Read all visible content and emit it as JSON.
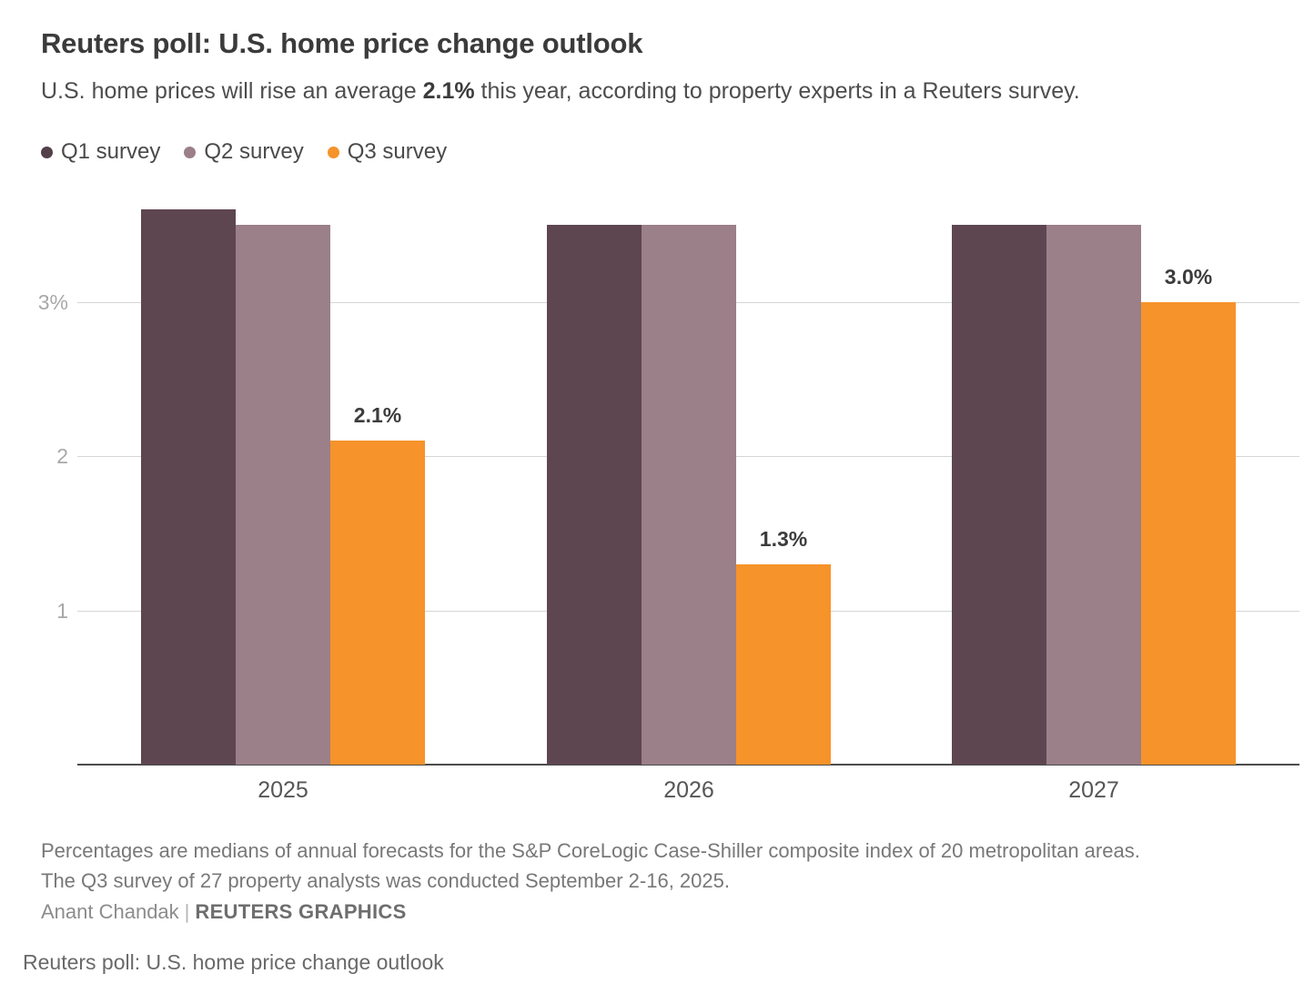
{
  "title": "Reuters poll: U.S. home price change outlook",
  "subtitle": {
    "prefix": "U.S. home prices will rise an average ",
    "highlight": "2.1%",
    "suffix": " this year, according to property experts in a Reuters survey."
  },
  "legend": {
    "items": [
      {
        "label": "Q1 survey",
        "color": "#53404a"
      },
      {
        "label": "Q2 survey",
        "color": "#9b7f89"
      },
      {
        "label": "Q3 survey",
        "color": "#f6932a"
      }
    ]
  },
  "chart_data": {
    "type": "bar",
    "categories": [
      "2025",
      "2026",
      "2027"
    ],
    "series": [
      {
        "name": "Q1 survey",
        "color": "#5e4650",
        "values": [
          3.6,
          3.5,
          3.5
        ],
        "labels": [
          null,
          null,
          null
        ]
      },
      {
        "name": "Q2 survey",
        "color": "#9b7f89",
        "values": [
          3.5,
          3.5,
          3.5
        ],
        "labels": [
          null,
          null,
          null
        ]
      },
      {
        "name": "Q3 survey",
        "color": "#f6932a",
        "values": [
          2.1,
          1.3,
          3.0
        ],
        "labels": [
          "2.1%",
          "1.3%",
          "3.0%"
        ]
      }
    ],
    "yticks": [
      {
        "value": 1,
        "label": "1"
      },
      {
        "value": 2,
        "label": "2"
      },
      {
        "value": 3,
        "label": "3%"
      }
    ],
    "ylim": [
      0,
      3.65
    ],
    "xlabel": "",
    "ylabel": "",
    "grid": "horizontal",
    "legend_position": "top-left",
    "accent_color": "#f6932a"
  },
  "footnote": {
    "line1": "Percentages are medians of annual forecasts for the S&P CoreLogic Case-Shiller composite index of 20 metropolitan areas.",
    "line2": "The Q3 survey of 27 property analysts was conducted September 2-16, 2025."
  },
  "byline": {
    "author": "Anant Chandak",
    "separator": "|",
    "brand": "REUTERS GRAPHICS"
  },
  "caption": "Reuters poll: U.S. home price change outlook"
}
